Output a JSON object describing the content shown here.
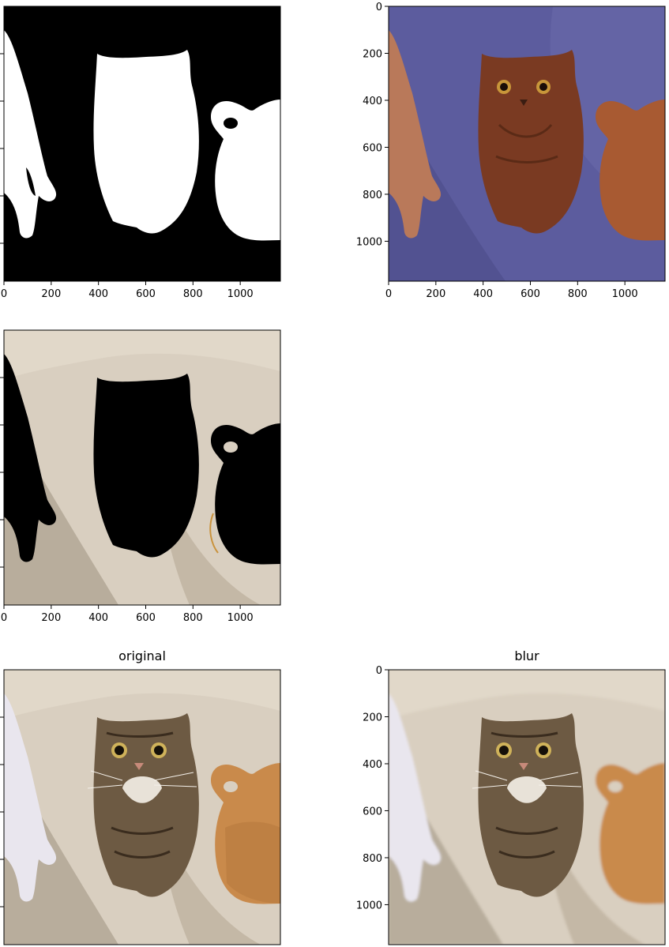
{
  "colors": {
    "mask_black": "#000000",
    "mask_white": "#ffffff",
    "wall_beige": "#d9cfc0",
    "shadow_beige": "#b8ad9c",
    "overlay_blue": "#5c5c9e",
    "overlay_red": "#7a3a22",
    "tabby_brown": "#6d5a43",
    "ginger": "#c98a4b",
    "white_cat": "#e9e6ee"
  },
  "chart_data": [
    {
      "id": "mask",
      "type": "image",
      "title": "",
      "content": "binary segmentation mask",
      "xlim": [
        0,
        1170
      ],
      "ylim": [
        1170,
        0
      ],
      "xticks": [
        0,
        200,
        400,
        600,
        800,
        1000
      ],
      "yticks": [],
      "xtick_labels": [
        "0",
        "200",
        "400",
        "600",
        "800",
        "1000"
      ],
      "ytick_labels": []
    },
    {
      "id": "overlay",
      "type": "image",
      "title": "",
      "content": "mask overlay on photo",
      "xlim": [
        0,
        1170
      ],
      "ylim": [
        1170,
        0
      ],
      "xticks": [
        0,
        200,
        400,
        600,
        800,
        1000
      ],
      "yticks": [
        0,
        200,
        400,
        600,
        800,
        1000
      ],
      "xtick_labels": [
        "0",
        "200",
        "400",
        "600",
        "800",
        "1000"
      ],
      "ytick_labels": [
        "0",
        "200",
        "400",
        "600",
        "800",
        "1000"
      ]
    },
    {
      "id": "background",
      "type": "image",
      "title": "",
      "content": "photo with cats masked out",
      "xlim": [
        0,
        1170
      ],
      "ylim": [
        1170,
        0
      ],
      "xticks": [
        0,
        200,
        400,
        600,
        800,
        1000
      ],
      "yticks": [],
      "xtick_labels": [
        "0",
        "200",
        "400",
        "600",
        "800",
        "1000"
      ],
      "ytick_labels": []
    },
    {
      "id": "original",
      "type": "image",
      "title": "original",
      "content": "original photo",
      "xlim": [
        0,
        1170
      ],
      "ylim": [
        1170,
        0
      ],
      "xticks": [],
      "yticks": [],
      "xtick_labels": [],
      "ytick_labels": []
    },
    {
      "id": "blur",
      "type": "image",
      "title": "blur",
      "content": "background blurred photo",
      "xlim": [
        0,
        1170
      ],
      "ylim": [
        1170,
        0
      ],
      "xticks": [],
      "yticks": [
        0,
        200,
        400,
        600,
        800,
        1000
      ],
      "xtick_labels": [],
      "ytick_labels": [
        "0",
        "200",
        "400",
        "600",
        "800",
        "1000"
      ]
    }
  ]
}
